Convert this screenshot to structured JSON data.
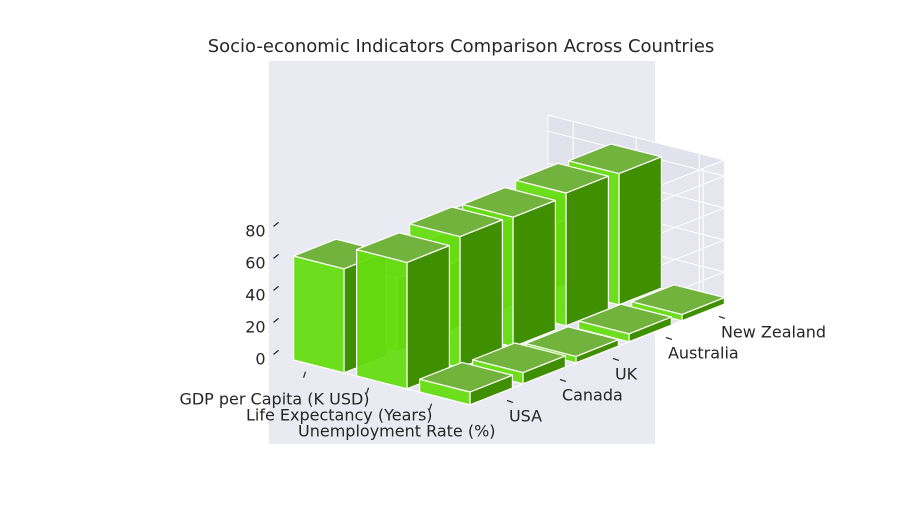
{
  "chart_data": {
    "type": "bar",
    "title": "Socio-economic Indicators Comparison Across Countries",
    "categories": [
      "GDP per Capita (K USD)",
      "Life Expectancy (Years)",
      "Unemployment Rate (%)"
    ],
    "countries": [
      "USA",
      "Canada",
      "UK",
      "Australia",
      "New Zealand"
    ],
    "series": [
      {
        "name": "USA",
        "values": [
          65,
          79,
          8
        ]
      },
      {
        "name": "Canada",
        "values": [
          46,
          82,
          7
        ]
      },
      {
        "name": "UK",
        "values": [
          42,
          81,
          4
        ]
      },
      {
        "name": "Australia",
        "values": [
          55,
          83,
          5
        ]
      },
      {
        "name": "New Zealand",
        "values": [
          41,
          82,
          4
        ]
      }
    ],
    "zlim": [
      0,
      90
    ],
    "z_ticks": [
      "0",
      "20",
      "40",
      "60",
      "80"
    ],
    "grid": true,
    "colors": {
      "bar": "#66ff00",
      "background": "#eaeaf2",
      "grid": "#ffffff"
    }
  }
}
